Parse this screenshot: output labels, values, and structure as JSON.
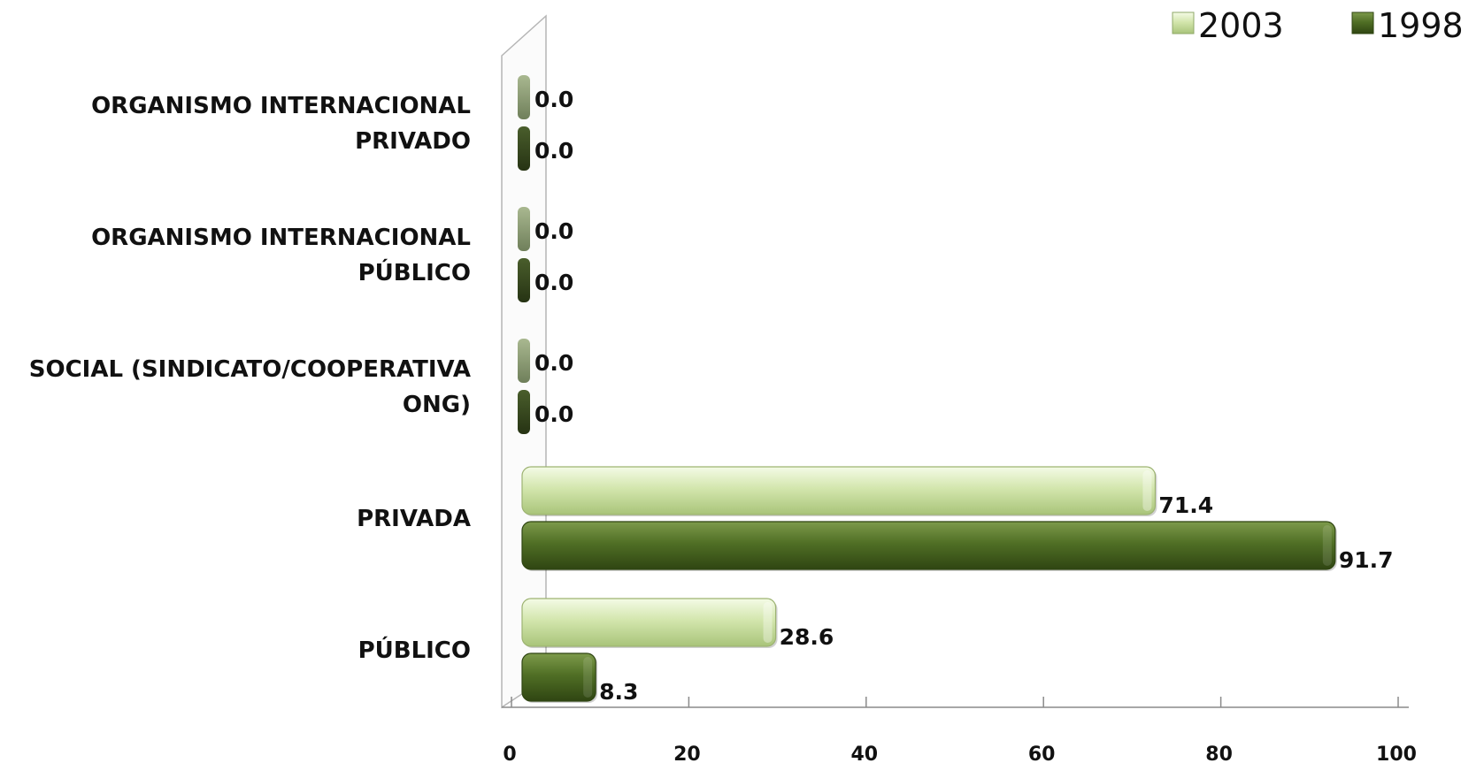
{
  "chart_data": {
    "type": "bar",
    "orientation": "horizontal",
    "title": "",
    "xlabel": "",
    "ylabel": "",
    "categories": [
      [
        "PÚBLICO"
      ],
      [
        "PRIVADA"
      ],
      [
        "SOCIAL (SINDICATO/COOPERATIVA",
        "ONG)"
      ],
      [
        "ORGANISMO INTERNACIONAL",
        "PÚBLICO"
      ],
      [
        "ORGANISMO INTERNACIONAL",
        "PRIVADO"
      ]
    ],
    "series": [
      {
        "name": "2003",
        "values": [
          28.6,
          71.4,
          0.0,
          0.0,
          0.0
        ],
        "value_labels": [
          "28.6",
          "71.4",
          "0.0",
          "0.0",
          "0.0"
        ],
        "color": "#c6dc9b"
      },
      {
        "name": "1998",
        "values": [
          8.3,
          91.7,
          0.0,
          0.0,
          0.0
        ],
        "value_labels": [
          "8.3",
          "91.7",
          "0.0",
          "0.0",
          "0.0"
        ],
        "color": "#4e6b22"
      }
    ],
    "xlim": [
      0,
      100
    ],
    "xticks": [
      0,
      20,
      40,
      60,
      80,
      100
    ],
    "grid": false,
    "legend_position": "top-right",
    "style": "3d"
  }
}
